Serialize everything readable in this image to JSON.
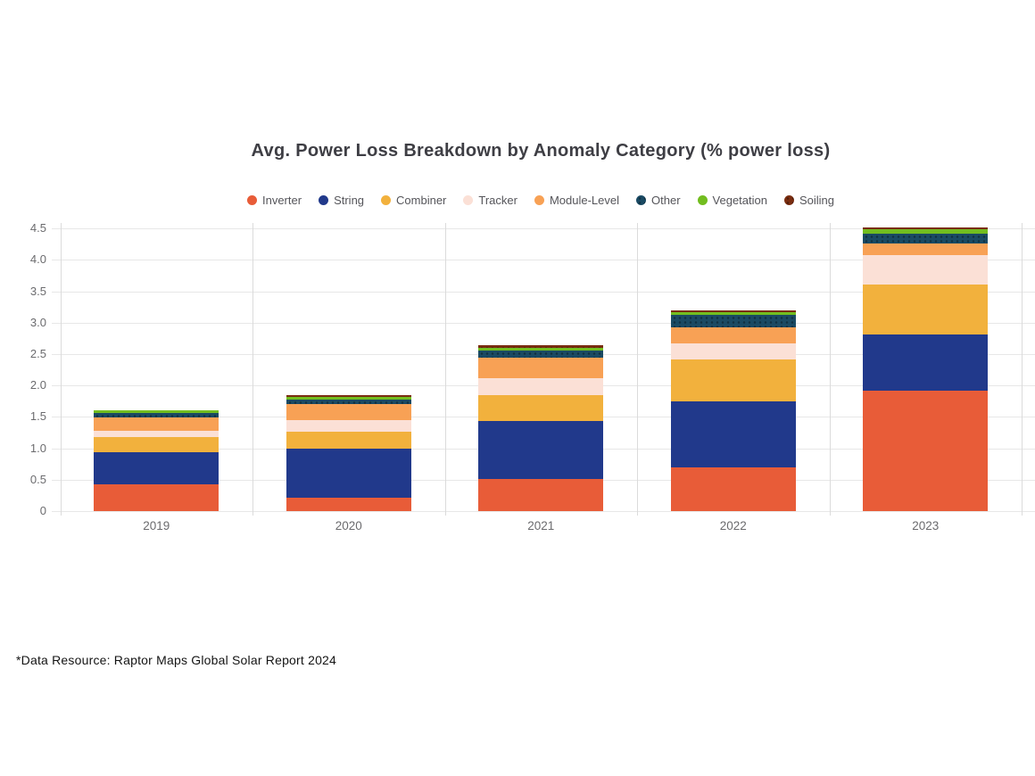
{
  "page": {
    "title": "Avg. Power Loss Breakdown by Anomaly Category (% power loss)",
    "footnote": "*Data Resource: Raptor Maps Global Solar Report 2024"
  },
  "chart_data": {
    "type": "bar",
    "stacked": true,
    "title": "Avg. Power Loss Breakdown by Anomaly Category (% power loss)",
    "xlabel": "",
    "ylabel": "",
    "categories": [
      "2019",
      "2020",
      "2021",
      "2022",
      "2023"
    ],
    "series": [
      {
        "name": "Inverter",
        "color": "#E85C38",
        "pattern": "solid",
        "values": [
          0.43,
          0.21,
          0.51,
          0.7,
          1.91
        ]
      },
      {
        "name": "String",
        "color": "#21398B",
        "pattern": "solid",
        "values": [
          0.5,
          0.79,
          0.92,
          1.05,
          0.9
        ]
      },
      {
        "name": "Combiner",
        "color": "#F2B13D",
        "pattern": "solid",
        "values": [
          0.25,
          0.26,
          0.42,
          0.67,
          0.8
        ]
      },
      {
        "name": "Tracker",
        "color": "#FBE0D6",
        "pattern": "solid",
        "values": [
          0.1,
          0.19,
          0.27,
          0.25,
          0.47
        ]
      },
      {
        "name": "Module-Level",
        "color": "#F8A155",
        "pattern": "solid",
        "values": [
          0.21,
          0.26,
          0.33,
          0.26,
          0.18
        ]
      },
      {
        "name": "Other",
        "color": "#1A4A63",
        "pattern": "dots",
        "values": [
          0.07,
          0.07,
          0.1,
          0.2,
          0.16
        ]
      },
      {
        "name": "Vegetation",
        "color": "#72BD1F",
        "pattern": "solid",
        "values": [
          0.04,
          0.04,
          0.05,
          0.04,
          0.07
        ]
      },
      {
        "name": "Soiling",
        "color": "#7A2D10",
        "pattern": "dots",
        "values": [
          0.01,
          0.03,
          0.04,
          0.03,
          0.03
        ]
      }
    ],
    "totals": [
      1.61,
      1.85,
      2.64,
      3.2,
      4.52
    ],
    "ylim": [
      0,
      4.5
    ],
    "y_ticks": [
      "0",
      "0.5",
      "1.0",
      "1.5",
      "2.0",
      "2.5",
      "3.0",
      "3.5",
      "4.0",
      "4.5"
    ],
    "grid": true,
    "legend_position": "top"
  }
}
